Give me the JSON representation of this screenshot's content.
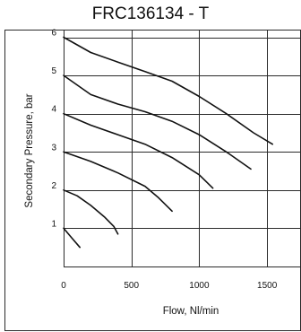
{
  "chart_data": {
    "type": "line",
    "title": "FRC136134 - T",
    "xlabel": "Flow, Nl/min",
    "ylabel": "Secondary Pressure, bar",
    "xlim": [
      0,
      1750
    ],
    "ylim": [
      0,
      6.2
    ],
    "x_ticks": [
      0,
      500,
      1000,
      1500
    ],
    "y_ticks": [
      1,
      2,
      3,
      4,
      5,
      6
    ],
    "grid": true,
    "legend": "none",
    "series": [
      {
        "x": [
          0,
          60,
          120
        ],
        "y": [
          1.0,
          0.75,
          0.5
        ]
      },
      {
        "x": [
          0,
          100,
          200,
          300,
          370,
          400
        ],
        "y": [
          2.0,
          1.85,
          1.6,
          1.3,
          1.05,
          0.85
        ]
      },
      {
        "x": [
          0,
          200,
          400,
          600,
          700,
          800
        ],
        "y": [
          3.0,
          2.75,
          2.45,
          2.1,
          1.8,
          1.45
        ]
      },
      {
        "x": [
          0,
          200,
          400,
          600,
          800,
          1000,
          1100
        ],
        "y": [
          4.0,
          3.7,
          3.45,
          3.2,
          2.85,
          2.4,
          2.05
        ]
      },
      {
        "x": [
          0,
          200,
          400,
          600,
          800,
          1000,
          1200,
          1380
        ],
        "y": [
          5.0,
          4.5,
          4.25,
          4.05,
          3.8,
          3.45,
          3.0,
          2.55
        ]
      },
      {
        "x": [
          0,
          200,
          400,
          600,
          800,
          1000,
          1200,
          1400,
          1540
        ],
        "y": [
          6.0,
          5.6,
          5.35,
          5.1,
          4.85,
          4.45,
          4.0,
          3.5,
          3.2
        ]
      }
    ]
  },
  "colors": {
    "line": "#111111",
    "grid": "#2a2a2a",
    "frame": "#2a2a2a",
    "background": "#ffffff"
  }
}
